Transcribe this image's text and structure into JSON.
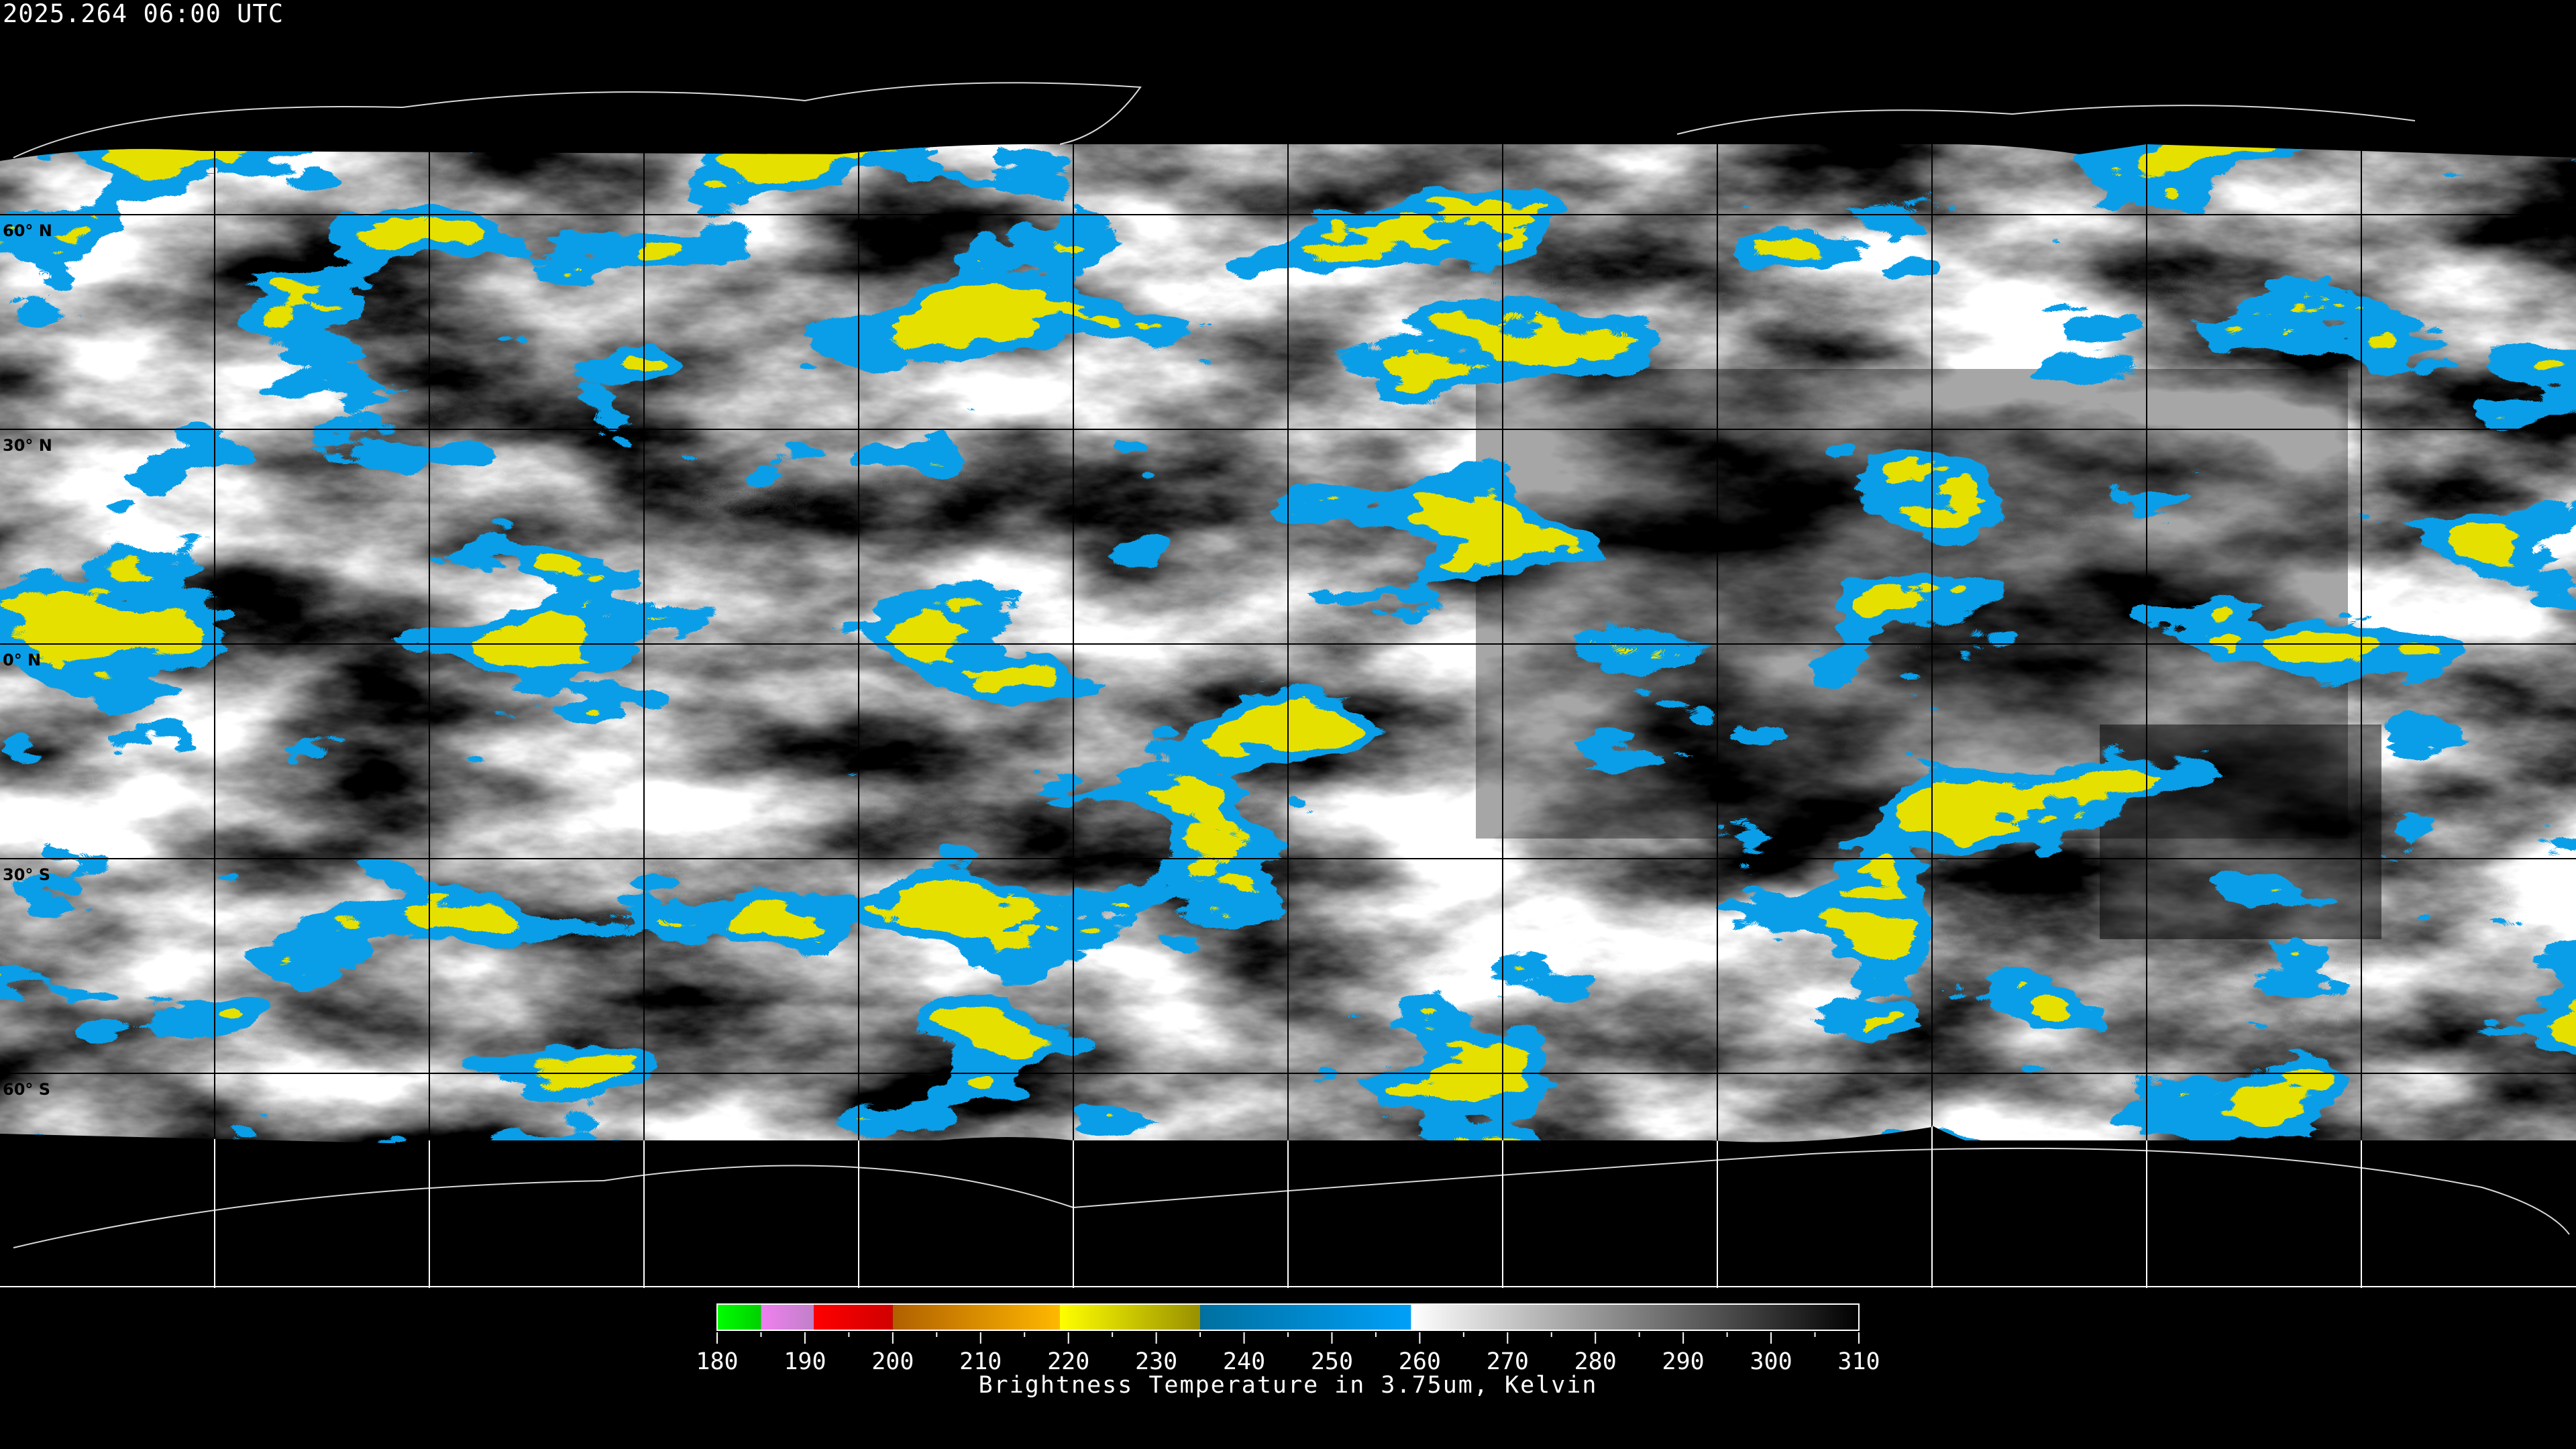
{
  "title": "2025.264 06:00 UTC",
  "lat_labels": [
    {
      "label": "60° N",
      "lat": 60
    },
    {
      "label": "30° N",
      "lat": 30
    },
    {
      "label": "0° N",
      "lat": 0
    },
    {
      "label": "30° S",
      "lat": -30
    },
    {
      "label": "60° S",
      "lat": -60
    }
  ],
  "grid": {
    "lat_step_deg": 30,
    "lon_step_deg": 30
  },
  "colorbar": {
    "min": 180,
    "max": 310,
    "ticks": [
      "180",
      "190",
      "200",
      "210",
      "220",
      "230",
      "240",
      "250",
      "260",
      "270",
      "280",
      "290",
      "300",
      "310"
    ],
    "minor_step": 5,
    "segments": [
      {
        "from": 180,
        "to": 185,
        "c1": "#00ff00",
        "c2": "#00d000"
      },
      {
        "from": 185,
        "to": 191,
        "c1": "#f080f0",
        "c2": "#c080c8"
      },
      {
        "from": 191,
        "to": 200,
        "c1": "#ff0000",
        "c2": "#d00000"
      },
      {
        "from": 200,
        "to": 219,
        "c1": "#b06000",
        "c2": "#ffb800"
      },
      {
        "from": 219,
        "to": 235,
        "c1": "#ffff00",
        "c2": "#989000"
      },
      {
        "from": 235,
        "to": 259,
        "c1": "#0070a0",
        "c2": "#00a0f8"
      },
      {
        "from": 259,
        "to": 310,
        "c1": "#ffffff",
        "c2": "#000000"
      }
    ],
    "caption": "Brightness Temperature in 3.75um, Kelvin"
  },
  "colors": {
    "cold_cloud": "#0a9ee8",
    "very_cold_cloud": "#e6e000",
    "background": "#000000"
  }
}
